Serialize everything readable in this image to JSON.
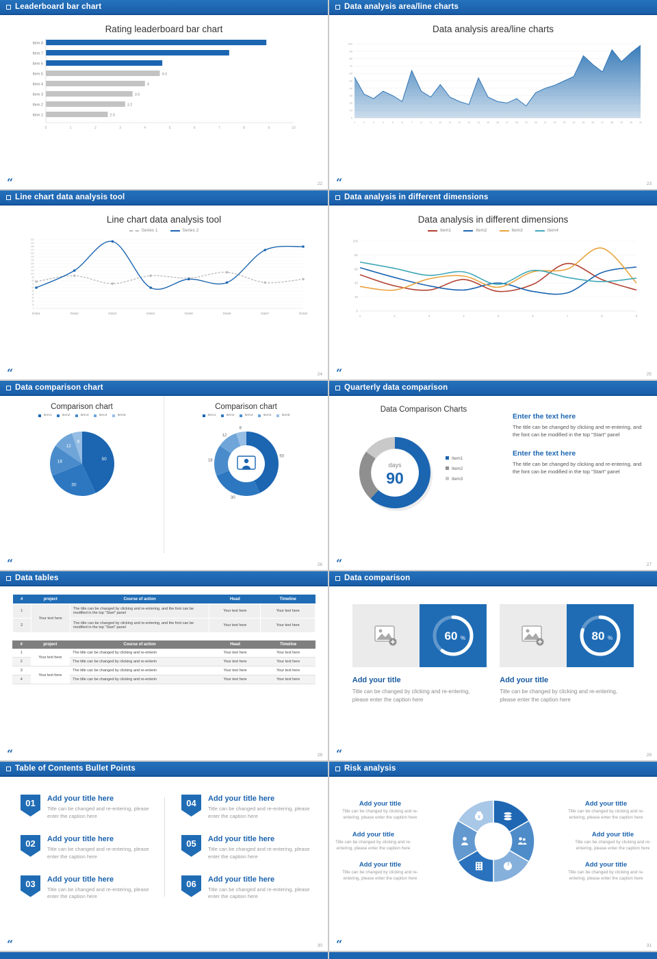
{
  "theme": {
    "accent": "#1b65b1",
    "accent_dark": "#114f96",
    "bar_gray": "#c3c3c3",
    "text_dark": "#333333",
    "text_gray": "#999999"
  },
  "slides": [
    {
      "header": "Leaderboard bar chart",
      "page": "22",
      "title": "Rating leaderboard bar chart",
      "chart_data": {
        "type": "bar",
        "orientation": "horizontal",
        "categories": [
          "Item 1",
          "Item 2",
          "Item 3",
          "Item 4",
          "Item 5",
          "Item 6",
          "Item 7",
          "Item 8"
        ],
        "values": [
          2.5,
          3.2,
          3.5,
          4,
          4.6,
          4.7,
          7.4,
          8.9
        ],
        "value_labels": [
          "2.5",
          "3.2",
          "3.5",
          "4",
          "4.6",
          "",
          "",
          ""
        ],
        "colors": [
          "#c3c3c3",
          "#c3c3c3",
          "#c3c3c3",
          "#c3c3c3",
          "#c3c3c3",
          "#1b65b1",
          "#1b65b1",
          "#1b65b1"
        ],
        "xlim": [
          0,
          10
        ],
        "xticks": [
          0,
          1,
          2,
          3,
          4,
          5,
          6,
          7,
          8,
          9,
          10
        ]
      }
    },
    {
      "header": "Data analysis area/line charts",
      "page": "23",
      "title": "Data analysis area/line charts",
      "chart_data": {
        "type": "area",
        "x": [
          1,
          2,
          3,
          4,
          5,
          6,
          7,
          8,
          9,
          10,
          11,
          12,
          13,
          14,
          15,
          16,
          17,
          18,
          19,
          20,
          21,
          22,
          23,
          24,
          25,
          26,
          27,
          28,
          29,
          30,
          31
        ],
        "values": [
          55,
          32,
          26,
          36,
          30,
          22,
          64,
          36,
          28,
          45,
          28,
          22,
          18,
          54,
          28,
          22,
          20,
          26,
          16,
          34,
          40,
          44,
          50,
          56,
          84,
          72,
          62,
          92,
          76,
          88,
          98
        ],
        "ylim": [
          0,
          100
        ],
        "ystep": 10,
        "color": "#2f75b5"
      }
    },
    {
      "header": "Line chart data analysis tool",
      "page": "24",
      "title": "Line chart data analysis tool",
      "chart_data": {
        "type": "line",
        "categories": [
          "Data1",
          "Data2",
          "Data3",
          "Data4",
          "Data5",
          "Data6",
          "Data7",
          "Data8"
        ],
        "ylim": [
          0,
          200
        ],
        "ystep": 10,
        "series": [
          {
            "name": "Series 1",
            "color": "#bcbcbc",
            "dashed": true,
            "values": [
              78,
              95,
              72,
              95,
              88,
              105,
              75,
              85
            ]
          },
          {
            "name": "Series 2",
            "color": "#1b65b1",
            "dashed": false,
            "values": [
              60,
              110,
              195,
              60,
              85,
              75,
              170,
              180
            ]
          }
        ]
      }
    },
    {
      "header": "Data analysis in different dimensions",
      "page": "25",
      "title": "Data analysis in different dimensions",
      "chart_data": {
        "type": "line",
        "x": [
          1,
          2,
          3,
          4,
          5,
          6,
          7,
          8,
          9
        ],
        "ylim": [
          0,
          100
        ],
        "ystep": 20,
        "series": [
          {
            "name": "Item1",
            "color": "#b2402f",
            "values": [
              52,
              36,
              30,
              45,
              28,
              38,
              68,
              45,
              30
            ]
          },
          {
            "name": "Item2",
            "color": "#1b65b1",
            "values": [
              62,
              48,
              36,
              30,
              40,
              28,
              26,
              55,
              63
            ]
          },
          {
            "name": "Item3",
            "color": "#e8a33d",
            "values": [
              35,
              30,
              46,
              50,
              34,
              56,
              60,
              90,
              40
            ]
          },
          {
            "name": "Item4",
            "color": "#3fa8b8",
            "values": [
              70,
              61,
              51,
              56,
              38,
              58,
              48,
              42,
              47
            ]
          }
        ]
      }
    },
    {
      "header": "Data comparison chart",
      "page": "26",
      "charts": [
        {
          "type": "pie",
          "title": "Comparison chart",
          "labels": [
            "Item1",
            "Item2",
            "Item3",
            "Item4",
            "Item5"
          ],
          "values": [
            50,
            30,
            18,
            12,
            6
          ],
          "colors": [
            "#1b65b1",
            "#2d77c0",
            "#4a8ccb",
            "#6fa5d8",
            "#97bee4"
          ]
        },
        {
          "type": "donut",
          "title": "Comparison chart",
          "labels": [
            "Item1",
            "Item2",
            "Item3",
            "Item4",
            "Item5"
          ],
          "values": [
            50,
            30,
            18,
            12,
            6
          ],
          "colors": [
            "#1b65b1",
            "#2d77c0",
            "#4a8ccb",
            "#6fa5d8",
            "#97bee4"
          ],
          "center_icon": "presenter-icon"
        }
      ]
    },
    {
      "header": "Quarterly data comparison",
      "page": "27",
      "title": "Data Comparison Charts",
      "chart_data": {
        "type": "donut",
        "labels": [
          "Item1",
          "Item2",
          "Item3"
        ],
        "values": [
          62,
          23,
          15
        ],
        "colors": [
          "#1b65b1",
          "#8f8f8f",
          "#c9c9c9"
        ],
        "center_label": "days",
        "center_value": "90"
      },
      "blocks": [
        {
          "heading": "Enter the text here",
          "body": "The title can be changed by clicking and re-entering, and the font can be modified in the top \"Start\" panel"
        },
        {
          "heading": "Enter the text here",
          "body": "The title can be changed by clicking and re-entering, and the font can be modified in the top \"Start\" panel"
        }
      ]
    },
    {
      "header": "Data tables",
      "page": "28",
      "columns": [
        "#",
        "project",
        "Course of action",
        "Head",
        "Timeline"
      ],
      "table1": {
        "project": "Your text here",
        "rows": [
          {
            "num": "1",
            "action": "The title can be changed by clicking and re-entering, and the font can be modified in the top \"Start\" panel",
            "head": "Your text here",
            "timeline": "Your text here"
          },
          {
            "num": "2",
            "action": "The title can be changed by clicking and re-entering, and the font can be modified in the top \"Start\" panel",
            "head": "Your text here",
            "timeline": "Your text here"
          }
        ]
      },
      "table2": {
        "groups": [
          {
            "project": "Your text here",
            "rows": [
              {
                "num": "1",
                "action": "The title can be changed by clicking and re-enterin",
                "head": "Your text here",
                "timeline": "Your text here"
              },
              {
                "num": "2",
                "action": "The title can be changed by clicking and re-enterin",
                "head": "Your text here",
                "timeline": "Your text here"
              }
            ]
          },
          {
            "project": "Your text here",
            "rows": [
              {
                "num": "3",
                "action": "The title can be changed by clicking and re-enterin",
                "head": "Your text here",
                "timeline": "Your text here"
              },
              {
                "num": "4",
                "action": "The title can be changed by clicking and re-enterin",
                "head": "Your text here",
                "timeline": "Your text here"
              }
            ]
          }
        ]
      }
    },
    {
      "header": "Data comparison",
      "page": "29",
      "cards": [
        {
          "percent": 60,
          "percent_suffix": "%",
          "title": "Add your title",
          "caption": "Title can be changed by clicking and re-entering, please enter the caption here"
        },
        {
          "percent": 80,
          "percent_suffix": "%",
          "title": "Add your title",
          "caption": "Title can be changed by clicking and re-entering, please enter the caption here"
        }
      ]
    },
    {
      "header": "Table of Contents Bullet Points",
      "page": "30",
      "items": [
        {
          "num": "01",
          "title": "Add your title here",
          "caption": "Title can be changed and re-entering, please enter the caption here"
        },
        {
          "num": "02",
          "title": "Add your title here",
          "caption": "Title can be changed and re-entering, please enter the caption here"
        },
        {
          "num": "03",
          "title": "Add your title here",
          "caption": "Title can be changed and re-entering, please enter the caption here"
        },
        {
          "num": "04",
          "title": "Add your title here",
          "caption": "Title can be changed and re-entering, please enter the caption here"
        },
        {
          "num": "05",
          "title": "Add your title here",
          "caption": "Title can be changed and re-entering, please enter the caption here"
        },
        {
          "num": "06",
          "title": "Add your title here",
          "caption": "Title can be changed and re-entering, please enter the caption here"
        }
      ]
    },
    {
      "header": "Risk analysis",
      "page": "31",
      "icons": [
        "coins-icon",
        "people-icon",
        "pie-chart-icon",
        "bank-icon",
        "presenter-icon",
        "money-bag-icon"
      ],
      "blocks": [
        {
          "title": "Add your title",
          "caption": "Title can be changed by clicking and re-entering, please enter the caption here"
        },
        {
          "title": "Add your title",
          "caption": "Title can be changed by clicking and re-entering, please enter the caption here"
        },
        {
          "title": "Add your title",
          "caption": "Title can be changed by clicking and re-entering, please enter the caption here"
        },
        {
          "title": "Add your title",
          "caption": "Title can be changed by clicking and re-entering, please enter the caption here"
        },
        {
          "title": "Add your title",
          "caption": "Title can be changed by clicking and re-entering, please enter the caption here"
        },
        {
          "title": "Add your title",
          "caption": "Title can be changed by clicking and re-entering, please enter the caption here"
        }
      ]
    }
  ]
}
